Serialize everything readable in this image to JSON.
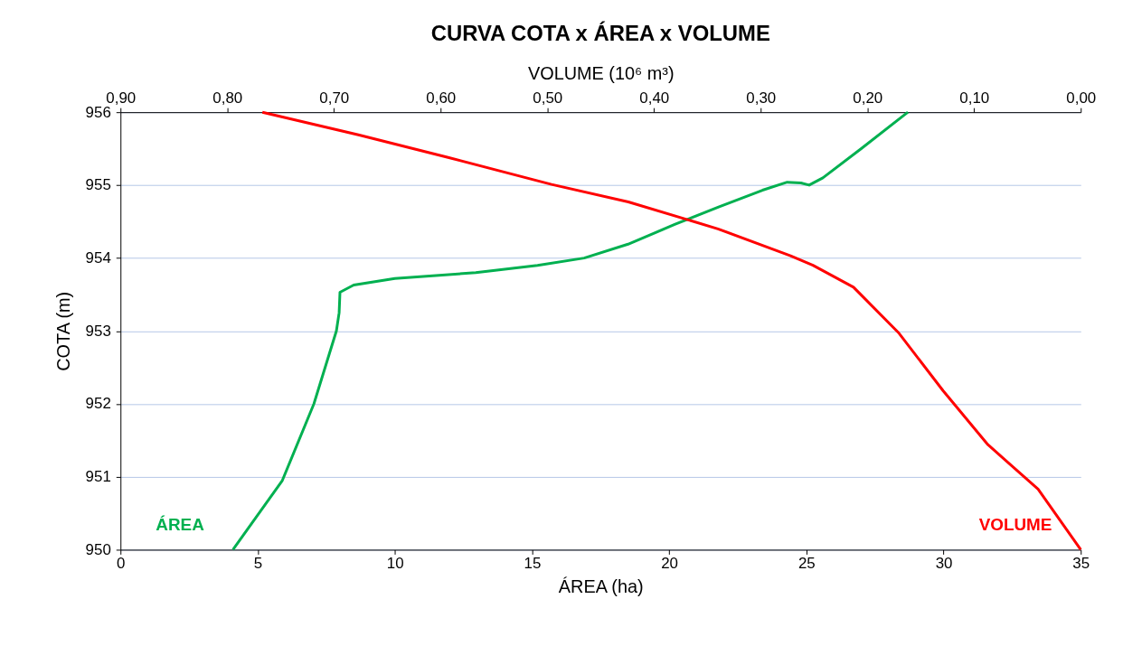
{
  "chart_data": {
    "type": "line",
    "title": "CURVA COTA x ÁREA x VOLUME",
    "xlabel": "ÁREA (ha)",
    "x2label": "VOLUME  (10⁶ m³)",
    "ylabel": "COTA  (m)",
    "xlim": [
      0,
      35
    ],
    "xticks": [
      0,
      5,
      10,
      15,
      20,
      25,
      30,
      35
    ],
    "x2lim": [
      0.9,
      0.0
    ],
    "x2ticks": [
      {
        "value": 0.9,
        "label": "0,90"
      },
      {
        "value": 0.8,
        "label": "0,80"
      },
      {
        "value": 0.7,
        "label": "0,70"
      },
      {
        "value": 0.6,
        "label": "0,60"
      },
      {
        "value": 0.5,
        "label": "0,50"
      },
      {
        "value": 0.4,
        "label": "0,40"
      },
      {
        "value": 0.3,
        "label": "0,30"
      },
      {
        "value": 0.2,
        "label": "0,20"
      },
      {
        "value": 0.1,
        "label": "0,10"
      },
      {
        "value": 0.0,
        "label": "0,00"
      }
    ],
    "ylim": [
      950,
      956
    ],
    "yticks": [
      950,
      951,
      952,
      953,
      954,
      955,
      956
    ],
    "grid": "y",
    "legend": false,
    "marker": "none",
    "line_style": "solid",
    "series": [
      {
        "name": "ÁREA",
        "color": "#00b050",
        "x": [
          4.1,
          5.9,
          7.05,
          7.87,
          7.97,
          8.0,
          8.5,
          10.0,
          12.95,
          15.2,
          16.9,
          18.5,
          20.2,
          21.8,
          23.4,
          24.3,
          24.8,
          25.1,
          25.6,
          27.0,
          28.7
        ],
        "values": [
          950,
          950.95,
          952.0,
          953.0,
          953.25,
          953.53,
          953.63,
          953.72,
          953.8,
          953.9,
          954.0,
          954.19,
          954.46,
          954.7,
          954.93,
          955.04,
          955.03,
          955.0,
          955.1,
          955.5,
          956
        ]
      },
      {
        "name": "VOLUME",
        "color": "#ff0000",
        "axis": "x2",
        "x": [
          0.0,
          0.04,
          0.087,
          0.129,
          0.171,
          0.213,
          0.251,
          0.272,
          0.34,
          0.424,
          0.496,
          0.593,
          0.677,
          0.767
        ],
        "values": [
          950,
          950.83,
          951.44,
          952.18,
          952.98,
          953.6,
          953.9,
          954.03,
          954.4,
          954.77,
          955.01,
          955.38,
          955.69,
          956
        ]
      }
    ]
  }
}
